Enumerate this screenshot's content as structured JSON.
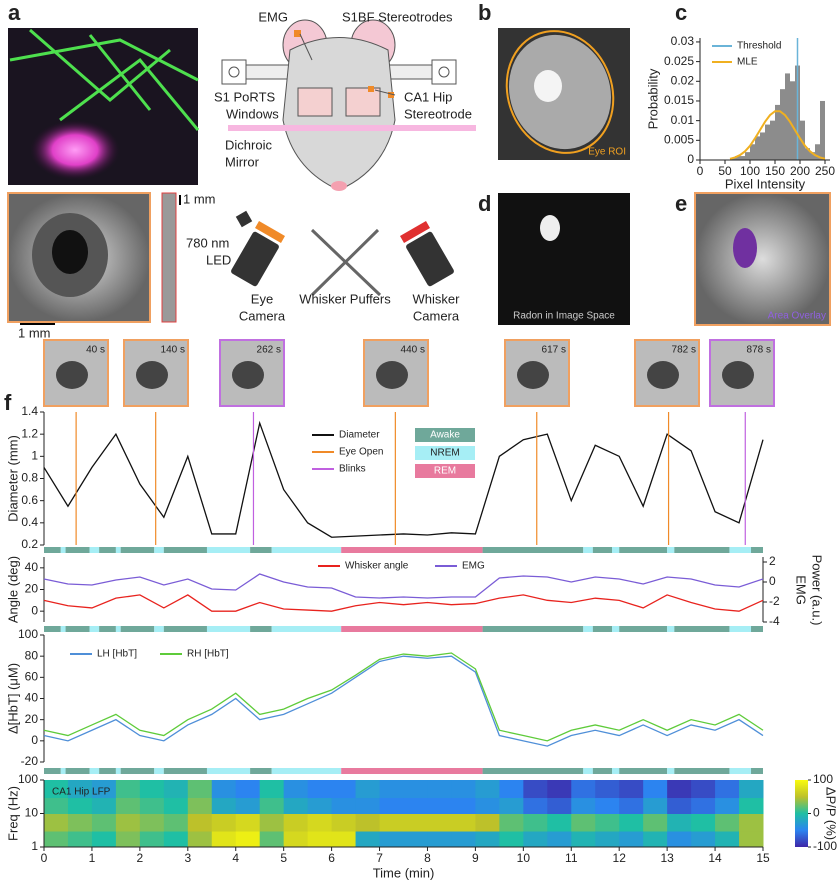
{
  "figure": {
    "panel_labels": [
      "a",
      "b",
      "c",
      "d",
      "e",
      "f"
    ],
    "schematic": {
      "emg": "EMG",
      "s1bf": "S1BF Stereotrodes",
      "ports": [
        "S1 PoRTS",
        "Windows"
      ],
      "ca1": [
        "CA1 Hip",
        "Stereotrode"
      ],
      "mirror": [
        "Dichroic",
        "Mirror"
      ]
    },
    "scale_bars": [
      "1 mm",
      "1 mm"
    ],
    "led": [
      "780 nm",
      "LED"
    ],
    "eye_camera": [
      "Eye",
      "Camera"
    ],
    "puffers": "Whisker Puffers",
    "whisker_camera": [
      "Whisker",
      "Camera"
    ],
    "eye_roi": "Eye ROI",
    "radon": "Radon in Image Space",
    "area_overlay": "Area Overlay",
    "thumbnails": [
      {
        "label": "40 s",
        "color": "#f0a060"
      },
      {
        "label": "140 s",
        "color": "#f0a060"
      },
      {
        "label": "262 s",
        "color": "#c070e0"
      },
      {
        "label": "440 s",
        "color": "#f0a060"
      },
      {
        "label": "617 s",
        "color": "#f0a060"
      },
      {
        "label": "782 s",
        "color": "#f0a060"
      },
      {
        "label": "878 s",
        "color": "#c070e0"
      }
    ]
  },
  "chart_data": [
    {
      "type": "histogram",
      "xlabel": "Pixel Intensity",
      "ylabel": "Probability",
      "bins": [
        60,
        70,
        80,
        90,
        100,
        110,
        120,
        130,
        140,
        150,
        160,
        170,
        180,
        190,
        200,
        210,
        220,
        230,
        240,
        250
      ],
      "values": [
        0.0005,
        0.001,
        0.001,
        0.002,
        0.004,
        0.006,
        0.007,
        0.009,
        0.01,
        0.014,
        0.018,
        0.022,
        0.02,
        0.024,
        0.01,
        0.003,
        0.002,
        0.004,
        0.015
      ],
      "color": "#8c8c8c",
      "threshold": {
        "name": "Threshold",
        "color": "#6ab4d8",
        "x": 195
      },
      "mle": {
        "name": "MLE",
        "color": "#f0b020",
        "x": [
          60,
          70,
          80,
          90,
          100,
          110,
          120,
          130,
          140,
          150,
          160,
          170,
          180,
          190,
          200,
          210,
          220,
          230,
          240,
          250
        ],
        "values": [
          0.0003,
          0.00065,
          0.00125,
          0.0022,
          0.0036,
          0.0055,
          0.0076,
          0.0097,
          0.0114,
          0.0124,
          0.0124,
          0.0114,
          0.0097,
          0.0076,
          0.0055,
          0.0036,
          0.0022,
          0.00125,
          0.00065,
          0.0003
        ]
      },
      "xlim": [
        0,
        260
      ],
      "xticks": [
        0,
        50,
        100,
        150,
        200,
        250
      ],
      "ylim": [
        0,
        0.031
      ],
      "yticks": [
        0,
        0.005,
        0.01,
        0.015,
        0.02,
        0.025,
        0.03
      ]
    },
    {
      "type": "line",
      "ylabel": "Diameter (mm)",
      "x": [
        0,
        0.5,
        1,
        1.5,
        2,
        2.5,
        3,
        3.5,
        4,
        4.5,
        5,
        5.5,
        6,
        6.5,
        7,
        7.5,
        8,
        8.5,
        9,
        9.5,
        10,
        10.5,
        11,
        11.5,
        12,
        12.5,
        13,
        13.5,
        14,
        14.5,
        15
      ],
      "series": [
        {
          "name": "Diameter",
          "color": "#111111",
          "values": [
            0.9,
            0.55,
            0.9,
            1.2,
            0.75,
            0.45,
            1.0,
            0.3,
            0.3,
            1.3,
            0.7,
            0.4,
            0.27,
            0.28,
            0.29,
            0.3,
            0.29,
            0.31,
            0.3,
            1.0,
            1.15,
            1.2,
            0.6,
            1.1,
            1.0,
            0.55,
            1.2,
            1.05,
            0.5,
            0.4,
            1.15
          ]
        }
      ],
      "events": [
        {
          "name": "Eye Open",
          "color": "#f08a28",
          "x": [
            0.67,
            2.33,
            7.33,
            10.28,
            13.03
          ]
        },
        {
          "name": "Blinks",
          "color": "#c060e0",
          "x": [
            4.37,
            14.63
          ]
        }
      ],
      "state_legend": [
        {
          "name": "Awake",
          "color": "#6fa89a"
        },
        {
          "name": "NREM",
          "color": "#a6eef5"
        },
        {
          "name": "REM",
          "color": "#e87a9e"
        }
      ],
      "state_bins": [
        0,
        0.35,
        0.45,
        0.95,
        1.15,
        1.5,
        1.6,
        2.3,
        2.5,
        3.4,
        4.3,
        4.75,
        6.2,
        9.15,
        11.25,
        11.45,
        11.85,
        12,
        13,
        13.15,
        14.3,
        14.75,
        15
      ],
      "states": [
        0,
        1,
        0,
        1,
        0,
        1,
        0,
        1,
        0,
        1,
        0,
        1,
        2,
        0,
        1,
        0,
        1,
        0,
        1,
        0,
        1,
        0
      ],
      "xlim": [
        0,
        15
      ],
      "ylim": [
        0.2,
        1.4
      ],
      "yticks": [
        0.2,
        0.4,
        0.6,
        0.8,
        1,
        1.2,
        1.4
      ]
    },
    {
      "type": "line",
      "ylabel": "Angle (deg)",
      "y2label": [
        "EMG",
        "Power (a.u.)"
      ],
      "x": [
        0,
        0.5,
        1,
        1.5,
        2,
        2.5,
        3,
        3.5,
        4,
        4.5,
        5,
        5.5,
        6,
        6.5,
        7,
        7.5,
        8,
        8.5,
        9,
        9.5,
        10,
        10.5,
        11,
        11.5,
        12,
        12.5,
        13,
        13.5,
        14,
        14.5,
        15
      ],
      "series": [
        {
          "name": "Whisker angle",
          "color": "#e8231e",
          "values": [
            10,
            5,
            3,
            12,
            15,
            3,
            15,
            0,
            0,
            8,
            2,
            1,
            0,
            5,
            8,
            6,
            8,
            6,
            7,
            12,
            15,
            10,
            8,
            12,
            10,
            3,
            15,
            8,
            2,
            0,
            10
          ]
        },
        {
          "name": "EMG",
          "color": "#7a5cd6",
          "axis": "y2",
          "values": [
            0.3,
            -0.2,
            -0.3,
            0.2,
            0.5,
            -0.3,
            0.3,
            -0.7,
            -0.8,
            0.8,
            0,
            -0.5,
            -0.6,
            -1.5,
            -1.6,
            -1.5,
            -1.6,
            -1.5,
            -1.5,
            0.4,
            0.6,
            0.5,
            0,
            0.5,
            0.3,
            -0.2,
            0.5,
            0.3,
            -0.3,
            -0.5,
            0.3
          ]
        }
      ],
      "xlim": [
        0,
        15
      ],
      "ylim": [
        -10,
        50
      ],
      "yticks": [
        0,
        20,
        40
      ],
      "y2lim": [
        -4,
        2.5
      ],
      "y2ticks": [
        -4,
        -2,
        0,
        2
      ]
    },
    {
      "type": "line",
      "ylabel": "Δ[HbT] (μM)",
      "x": [
        0,
        0.5,
        1,
        1.5,
        2,
        2.5,
        3,
        3.5,
        4,
        4.5,
        5,
        5.5,
        6,
        6.5,
        7,
        7.5,
        8,
        8.5,
        9,
        9.5,
        10,
        10.5,
        11,
        11.5,
        12,
        12.5,
        13,
        13.5,
        14,
        14.5,
        15
      ],
      "series": [
        {
          "name": "LH [HbT]",
          "color": "#4f8fd8",
          "values": [
            5,
            0,
            10,
            20,
            5,
            0,
            15,
            25,
            40,
            20,
            25,
            35,
            45,
            60,
            75,
            80,
            78,
            80,
            65,
            5,
            0,
            -5,
            5,
            10,
            5,
            15,
            5,
            15,
            10,
            20,
            5
          ]
        },
        {
          "name": "RH [HbT]",
          "color": "#5ecb3a",
          "values": [
            10,
            5,
            15,
            25,
            10,
            5,
            20,
            30,
            45,
            25,
            30,
            40,
            48,
            62,
            77,
            82,
            80,
            83,
            68,
            10,
            5,
            0,
            10,
            15,
            10,
            20,
            10,
            20,
            15,
            25,
            10
          ]
        }
      ],
      "xlim": [
        0,
        15
      ],
      "ylim": [
        -20,
        100
      ],
      "yticks": [
        -20,
        0,
        20,
        40,
        60,
        80,
        100
      ]
    },
    {
      "type": "heatmap",
      "ylabel": "Freq (Hz)",
      "xlabel": "Time (min)",
      "annotation": "CA1 Hip LFP",
      "x_bins": [
        0,
        0.5,
        1,
        1.5,
        2,
        2.5,
        3,
        3.5,
        4,
        4.5,
        5,
        5.5,
        6,
        6.5,
        7,
        7.5,
        8,
        8.5,
        9,
        9.5,
        10,
        10.5,
        11,
        11.5,
        12,
        12.5,
        13,
        13.5,
        14,
        14.5,
        15
      ],
      "y_bins": [
        1,
        3,
        10,
        30,
        100
      ],
      "values": [
        [
          20,
          10,
          0,
          30,
          10,
          0,
          40,
          80,
          90,
          20,
          70,
          80,
          80,
          -20,
          -30,
          -30,
          -30,
          -30,
          -20,
          0,
          -20,
          -30,
          -10,
          -20,
          -30,
          -10,
          -40,
          -30,
          -10,
          40
        ],
        [
          40,
          30,
          20,
          40,
          30,
          20,
          50,
          60,
          70,
          40,
          60,
          70,
          60,
          50,
          60,
          60,
          60,
          60,
          50,
          20,
          10,
          0,
          20,
          10,
          0,
          20,
          -10,
          0,
          20,
          40
        ],
        [
          10,
          0,
          -10,
          20,
          10,
          0,
          30,
          -20,
          -30,
          10,
          -20,
          -30,
          -40,
          -40,
          -50,
          -50,
          -50,
          -50,
          -40,
          -30,
          -60,
          -70,
          -40,
          -50,
          -60,
          -30,
          -70,
          -60,
          -40,
          0
        ],
        [
          0,
          -20,
          -30,
          10,
          0,
          -10,
          20,
          -40,
          -50,
          0,
          -40,
          -50,
          -50,
          -30,
          -40,
          -40,
          -40,
          -40,
          -30,
          -50,
          -80,
          -90,
          -60,
          -70,
          -80,
          -50,
          -90,
          -80,
          -60,
          -20
        ]
      ],
      "colormap": [
        "#3e26a8",
        "#2c84f0",
        "#1fbfa4",
        "#bdc12a",
        "#f9fb0e"
      ],
      "clim": [
        -100,
        100
      ],
      "cticks": [
        -100,
        0,
        100
      ],
      "clabel": "ΔP/P (%)",
      "ylog": true,
      "ylim": [
        1,
        100
      ],
      "yticks": [
        1,
        10,
        100
      ],
      "xlim": [
        0,
        15
      ],
      "xticks": [
        0,
        1,
        2,
        3,
        4,
        5,
        6,
        7,
        8,
        9,
        10,
        11,
        12,
        13,
        14,
        15
      ]
    }
  ]
}
